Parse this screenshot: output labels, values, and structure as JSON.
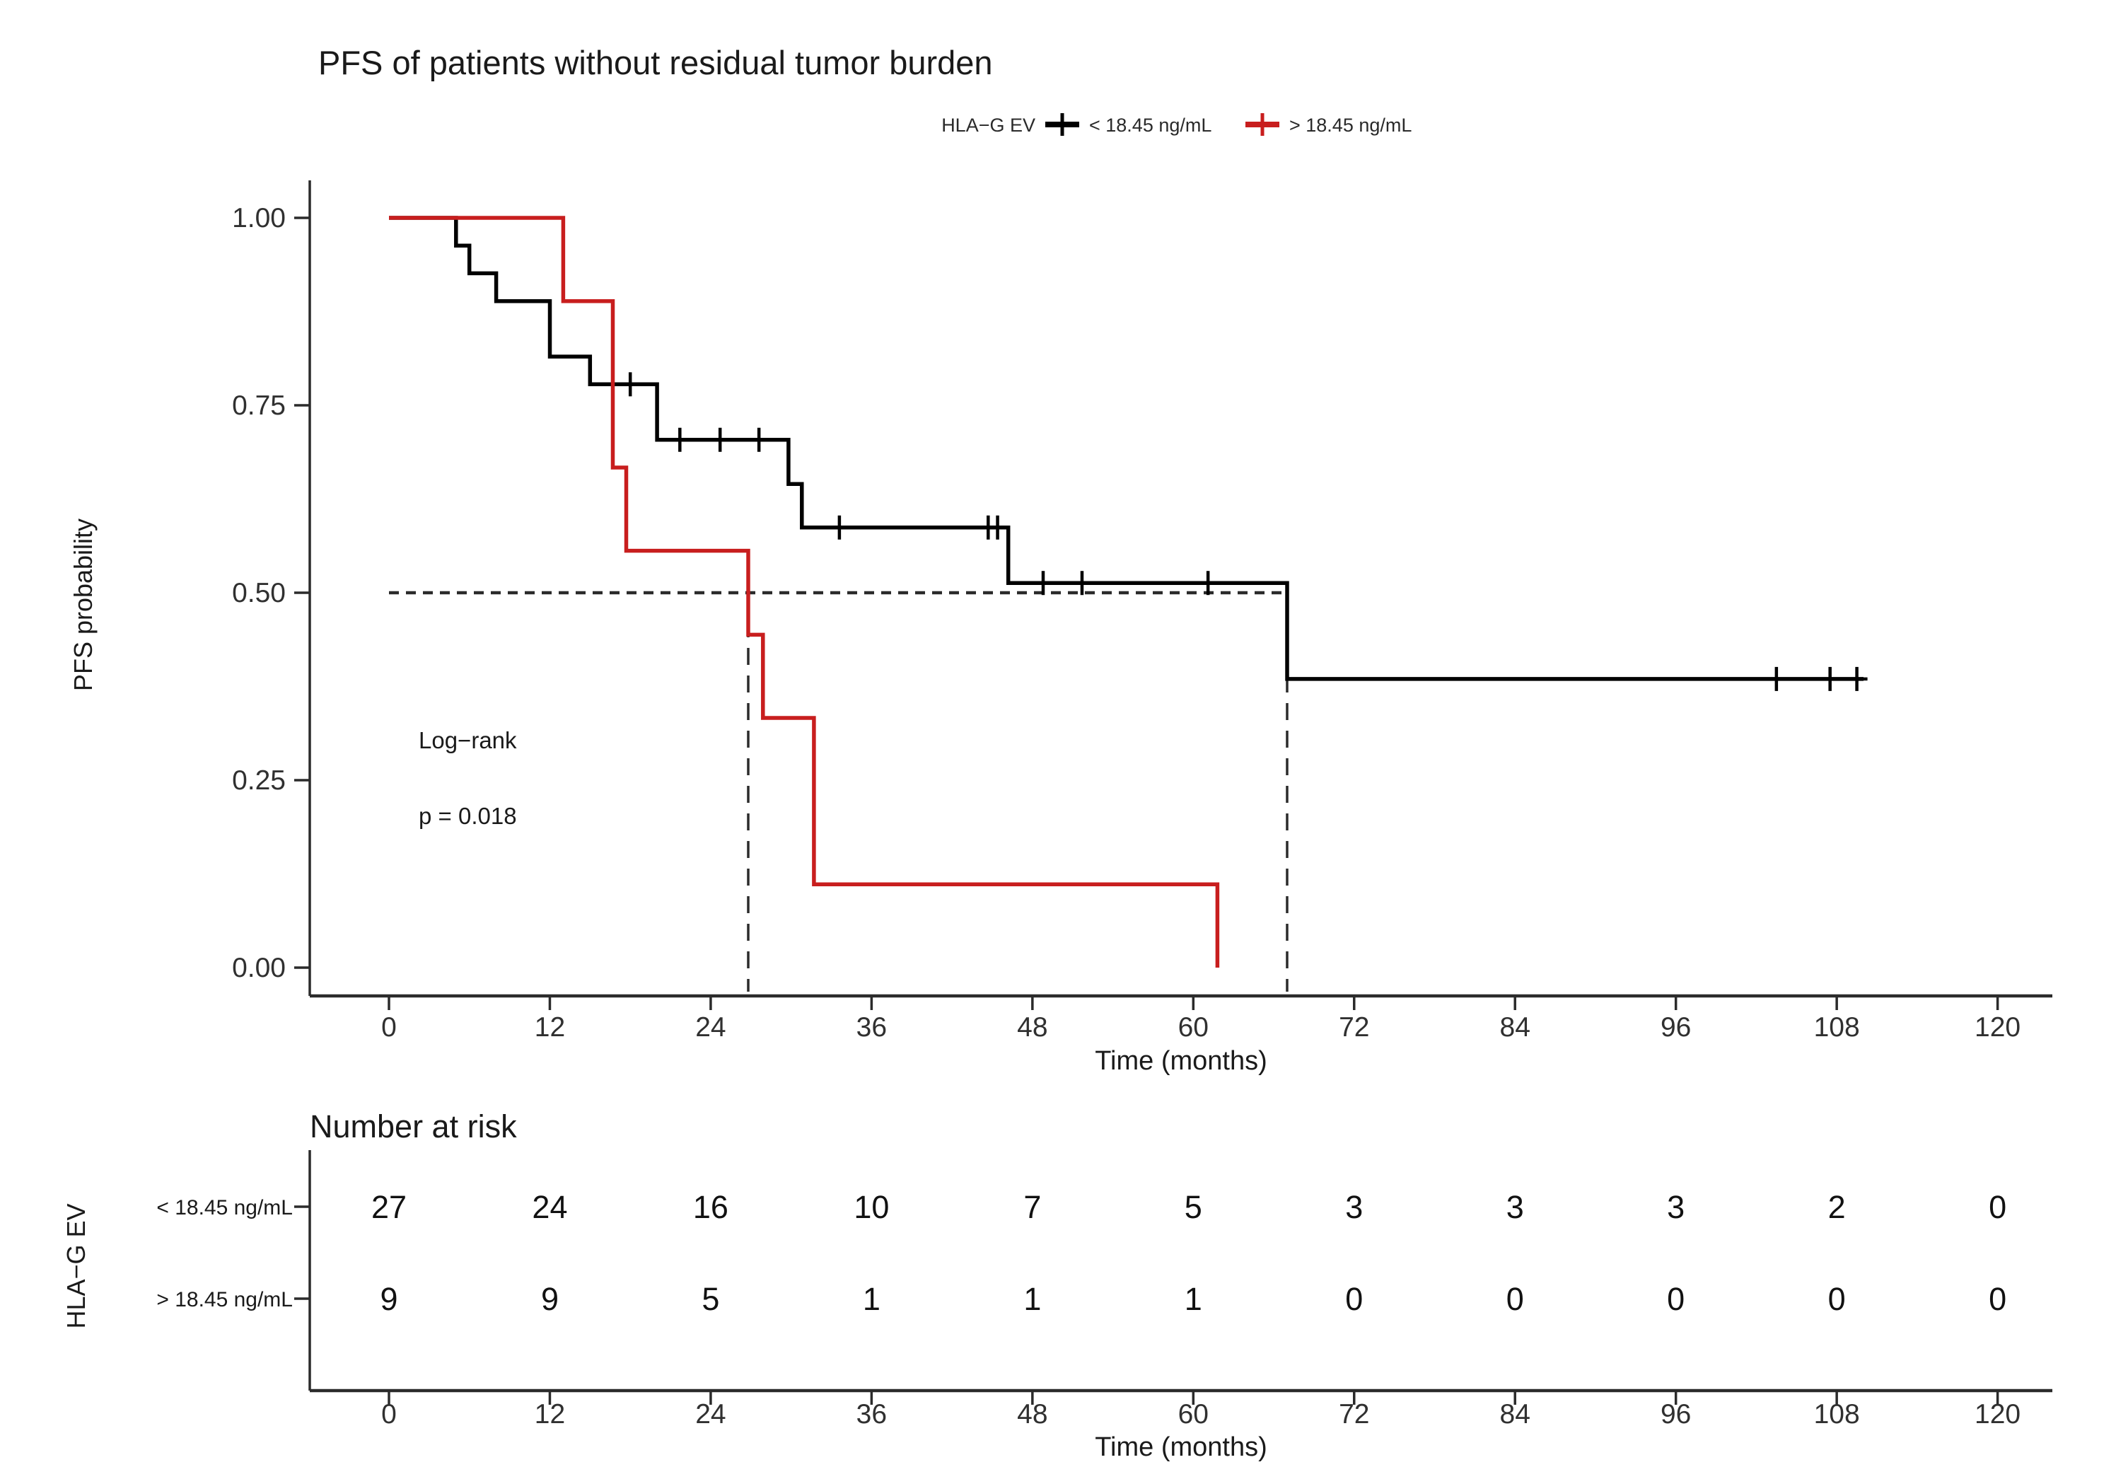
{
  "chart_data": {
    "type": "line",
    "subtype": "kaplan-meier-step-plot",
    "title": "PFS of patients without residual tumor burden",
    "xlabel": "Time (months)",
    "ylabel": "PFS probability",
    "xlim": [
      0,
      120
    ],
    "ylim": [
      0,
      1
    ],
    "grid": "off",
    "x_ticks": [
      0,
      12,
      24,
      36,
      48,
      60,
      72,
      84,
      96,
      108,
      120
    ],
    "y_ticks": [
      {
        "value": 1.0,
        "label": "1.00"
      },
      {
        "value": 0.75,
        "label": "0.75"
      },
      {
        "value": 0.5,
        "label": "0.50"
      },
      {
        "value": 0.25,
        "label": "0.25"
      },
      {
        "value": 0.0,
        "label": "0.00"
      }
    ],
    "legend": {
      "position": "top",
      "title": "HLA−G EV",
      "entries": [
        {
          "label": "< 18.45 ng/mL",
          "color": "#000000",
          "marker": "plus-line"
        },
        {
          "label": "> 18.45 ng/mL",
          "color": "#C81E1E",
          "marker": "plus-line"
        }
      ]
    },
    "annotations": {
      "line1": "Log−rank",
      "line2": "p = 0.018"
    },
    "median_lines": {
      "h": 0.5,
      "v": [
        26.8,
        67.0
      ]
    },
    "series": [
      {
        "name": "< 18.45 ng/mL",
        "color": "#000000",
        "points": [
          [
            0,
            1.0
          ],
          [
            5,
            1.0
          ],
          [
            5,
            0.963
          ],
          [
            6,
            0.963
          ],
          [
            6,
            0.926
          ],
          [
            8,
            0.926
          ],
          [
            8,
            0.889
          ],
          [
            12,
            0.889
          ],
          [
            12,
            0.815
          ],
          [
            15,
            0.815
          ],
          [
            15,
            0.778
          ],
          [
            20,
            0.778
          ],
          [
            20,
            0.704
          ],
          [
            29.8,
            0.704
          ],
          [
            29.8,
            0.645
          ],
          [
            30.8,
            0.645
          ],
          [
            30.8,
            0.587
          ],
          [
            46.2,
            0.587
          ],
          [
            46.2,
            0.513
          ],
          [
            67,
            0.513
          ],
          [
            67,
            0.385
          ],
          [
            110,
            0.385
          ]
        ],
        "censor_times": [
          [
            18,
            0.778
          ],
          [
            21.7,
            0.704
          ],
          [
            24.7,
            0.704
          ],
          [
            27.6,
            0.704
          ],
          [
            33.6,
            0.587
          ],
          [
            44.7,
            0.587
          ],
          [
            45.4,
            0.587
          ],
          [
            48.8,
            0.513
          ],
          [
            51.7,
            0.513
          ],
          [
            61.1,
            0.513
          ],
          [
            103.5,
            0.385
          ],
          [
            107.5,
            0.385
          ],
          [
            109.5,
            0.385
          ]
        ]
      },
      {
        "name": "> 18.45 ng/mL",
        "color": "#C81E1E",
        "points": [
          [
            0,
            1.0
          ],
          [
            13,
            1.0
          ],
          [
            13,
            0.889
          ],
          [
            16.7,
            0.889
          ],
          [
            16.7,
            0.667
          ],
          [
            17.7,
            0.667
          ],
          [
            17.7,
            0.556
          ],
          [
            26.8,
            0.556
          ],
          [
            26.8,
            0.444
          ],
          [
            27.9,
            0.444
          ],
          [
            27.9,
            0.333
          ],
          [
            31.7,
            0.333
          ],
          [
            31.7,
            0.111
          ],
          [
            61.8,
            0.111
          ],
          [
            61.8,
            0.0
          ]
        ],
        "censor_times": []
      }
    ],
    "risk_table": {
      "title": "Number at risk",
      "axis_label": "HLA−G EV",
      "xlabel": "Time (months)",
      "x_ticks": [
        0,
        12,
        24,
        36,
        48,
        60,
        72,
        84,
        96,
        108,
        120
      ],
      "rows": [
        {
          "label": "< 18.45 ng/mL",
          "color": "#2b2b2b",
          "values": [
            27,
            24,
            16,
            10,
            7,
            5,
            3,
            3,
            3,
            2,
            0
          ]
        },
        {
          "label": "> 18.45 ng/mL",
          "color": "#C81E1E",
          "values": [
            9,
            9,
            5,
            1,
            1,
            1,
            0,
            0,
            0,
            0,
            0
          ]
        }
      ]
    }
  }
}
